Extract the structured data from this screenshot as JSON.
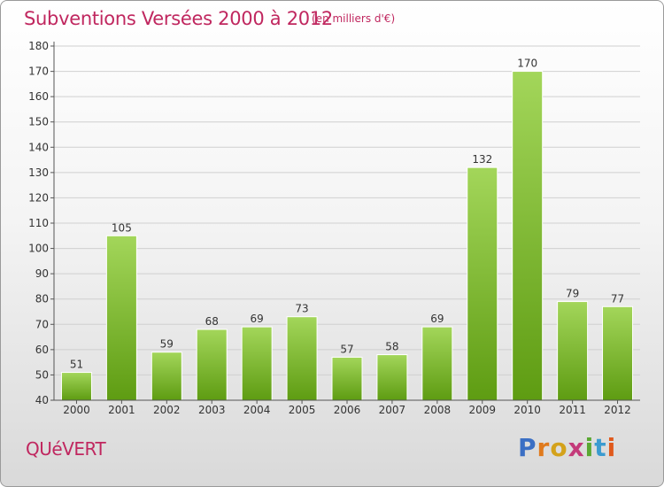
{
  "title": "Subventions Versées 2000 à 2012",
  "subtitle": "(en milliers d'€)",
  "commune": "QUéVERT",
  "logo": {
    "letters": [
      "P",
      "r",
      "o",
      "x",
      "i",
      "t",
      "i"
    ],
    "colors": [
      "#3b6fc4",
      "#e07a1d",
      "#d4a21b",
      "#c43a7a",
      "#5aa832",
      "#3b9bd0",
      "#e05a1d"
    ]
  },
  "colors": {
    "bar_top": "#a3d65a",
    "bar_bottom": "#5e9c12",
    "title": "#c0275f",
    "grid": "#d0d0d0"
  },
  "chart_data": {
    "type": "bar",
    "categories": [
      "2000",
      "2001",
      "2002",
      "2003",
      "2004",
      "2005",
      "2006",
      "2007",
      "2008",
      "2009",
      "2010",
      "2011",
      "2012"
    ],
    "values": [
      51,
      105,
      59,
      68,
      69,
      73,
      57,
      58,
      69,
      132,
      170,
      79,
      77
    ],
    "ylim": [
      40,
      180
    ],
    "yticks": [
      40,
      50,
      60,
      70,
      80,
      90,
      100,
      110,
      120,
      130,
      140,
      150,
      160,
      170,
      180
    ],
    "grid": true
  }
}
